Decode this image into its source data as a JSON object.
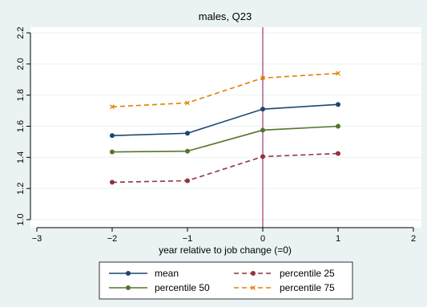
{
  "chart_data": {
    "type": "line",
    "title": "males, Q23",
    "xlabel": "year relative to job change (=0)",
    "ylabel": "",
    "xlim": [
      -3,
      2
    ],
    "ylim": [
      1.0,
      2.2
    ],
    "xticks": [
      -3,
      -2,
      -1,
      0,
      1,
      2
    ],
    "xtick_labels": [
      "−3",
      "−2",
      "−1",
      "0",
      "1",
      "2"
    ],
    "yticks": [
      1.0,
      1.2,
      1.4,
      1.6,
      1.8,
      2.0,
      2.2
    ],
    "ytick_labels": [
      "1.0",
      "1.2",
      "1.4",
      "1.6",
      "1.8",
      "2.0",
      "2.2"
    ],
    "x": [
      -2,
      -1,
      0,
      1
    ],
    "reference_line_x": 0,
    "grid": true,
    "legend_position": "bottom",
    "series": [
      {
        "name": "mean",
        "values": [
          1.54,
          1.555,
          1.71,
          1.74
        ],
        "color": "#1a476f",
        "style": "solid",
        "marker": "circle"
      },
      {
        "name": "percentile 25",
        "values": [
          1.24,
          1.25,
          1.405,
          1.425
        ],
        "color": "#90353b",
        "style": "dashed",
        "marker": "circle"
      },
      {
        "name": "percentile 50",
        "values": [
          1.435,
          1.44,
          1.575,
          1.6
        ],
        "color": "#55752f",
        "style": "solid",
        "marker": "circle"
      },
      {
        "name": "percentile 75",
        "values": [
          1.725,
          1.75,
          1.91,
          1.94
        ],
        "color": "#e37e00",
        "style": "dashed",
        "marker": "x"
      }
    ],
    "colors": {
      "background": "#eaf2f3",
      "plot_background": "#ffffff",
      "grid": "#eaf2f3",
      "reference_line": "#a23b72"
    }
  }
}
